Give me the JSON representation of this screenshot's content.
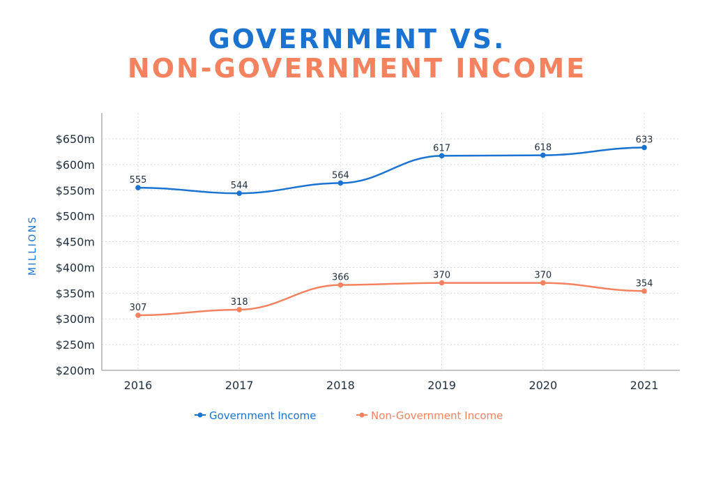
{
  "title_line1": "GOVERNMENT VS.",
  "title_line2": "NON-GOVERNMENT INCOME",
  "colors": {
    "government": "#1a73d0",
    "non_government": "#f4825e"
  },
  "chart_data": {
    "type": "line",
    "x": [
      "2016",
      "2017",
      "2018",
      "2019",
      "2020",
      "2021"
    ],
    "series": [
      {
        "name": "Government Income",
        "values": [
          555,
          544,
          564,
          617,
          618,
          633
        ]
      },
      {
        "name": "Non-Government Income",
        "values": [
          307,
          318,
          366,
          370,
          370,
          354
        ]
      }
    ],
    "ylabel": "MILLIONS",
    "ylim": [
      200,
      650
    ],
    "y_ticks": [
      200,
      250,
      300,
      350,
      400,
      450,
      500,
      550,
      600,
      650
    ],
    "y_tick_labels": [
      "$200m",
      "$250m",
      "$300m",
      "$350m",
      "$400m",
      "$450m",
      "$500m",
      "$550m",
      "$600m",
      "$650m"
    ],
    "grid": true,
    "legend_position": "bottom-center"
  }
}
